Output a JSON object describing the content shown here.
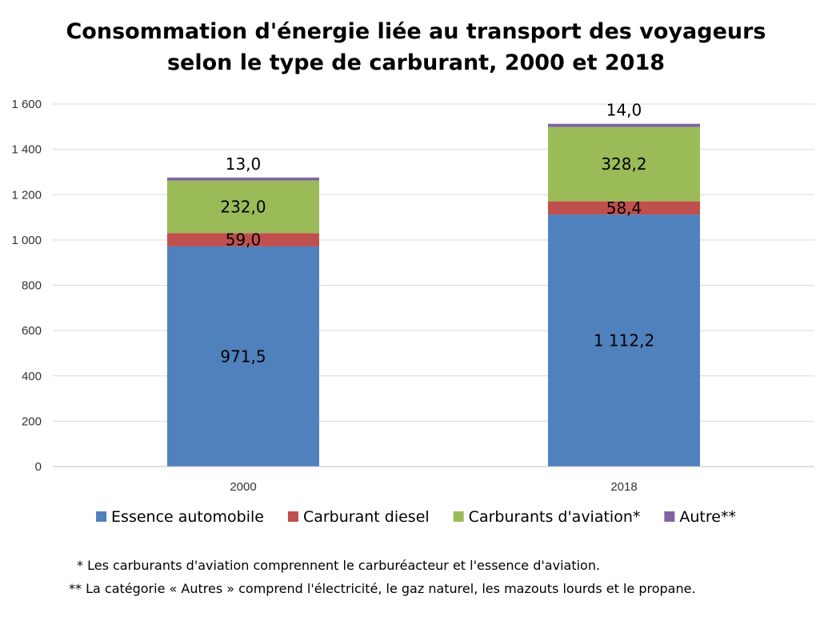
{
  "chart_data": {
    "type": "bar",
    "stacked": true,
    "title": [
      "Consommation d'énergie liée au transport des voyageurs",
      "selon le type de carburant, 2000 et 2018"
    ],
    "categories": [
      "2000",
      "2018"
    ],
    "series": [
      {
        "name": "Essence automobile",
        "color": "#4F81BD",
        "values": [
          971.5,
          1112.2
        ],
        "labels": [
          "971,5",
          "1 112,2"
        ]
      },
      {
        "name": "Carburant diesel",
        "color": "#C0504D",
        "values": [
          59.0,
          58.4
        ],
        "labels": [
          "59,0",
          "58,4"
        ]
      },
      {
        "name": "Carburants d'aviation*",
        "color": "#9BBB59",
        "values": [
          232.0,
          328.2
        ],
        "labels": [
          "232,0",
          "328,2"
        ]
      },
      {
        "name": "Autre**",
        "color": "#8064A2",
        "values": [
          13.0,
          14.0
        ],
        "labels": [
          "13,0",
          "14,0"
        ]
      }
    ],
    "yticks": [
      0,
      200,
      400,
      600,
      800,
      1000,
      1200,
      1400,
      1600
    ],
    "ytick_labels": [
      "0",
      "200",
      "400",
      "600",
      "800",
      "1 000",
      "1 200",
      "1 400",
      "1 600"
    ],
    "ylim": [
      0,
      1600
    ],
    "grid": true,
    "legend_position": "bottom",
    "footnotes": [
      "* Les carburants d'aviation comprennent le carburéacteur et l'essence d'aviation.",
      "** La catégorie « Autres » comprend l'électricité, le gaz naturel, les mazouts lourds et le propane."
    ]
  }
}
